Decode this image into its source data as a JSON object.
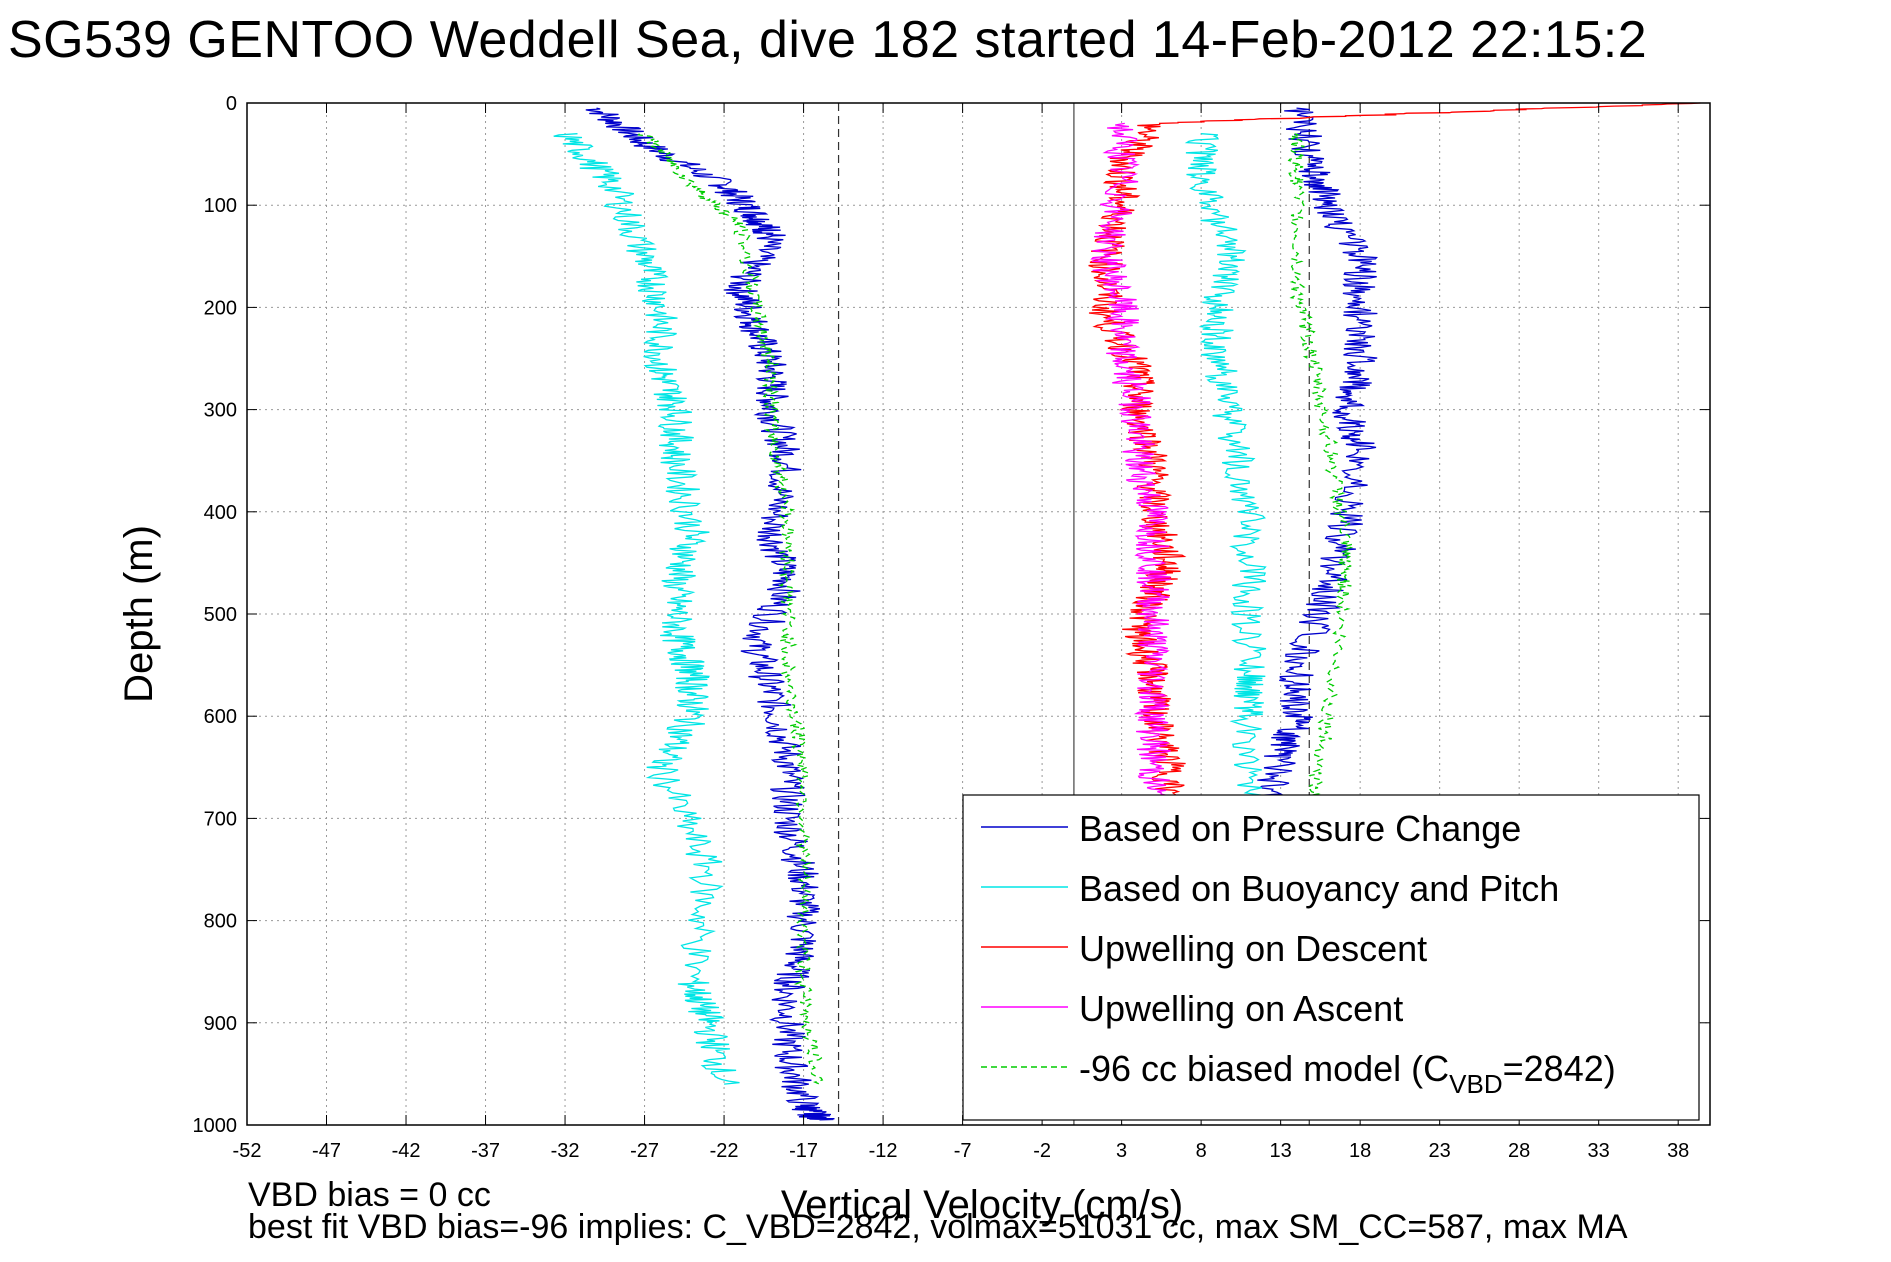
{
  "title": "SG539 GENTOO Weddell Sea, dive 182 started 14-Feb-2012 22:15:2",
  "notes": {
    "line1": "VBD bias = 0 cc",
    "line2": "best fit VBD bias=-96 implies: C_VBD=2842, volmax=51031 cc, max SM_CC=587, max MA"
  },
  "chart_data": {
    "type": "line",
    "xlabel": "Vertical Velocity (cm/s)",
    "ylabel": "Depth (m)",
    "xlim": [
      -52,
      40
    ],
    "ylim": [
      1000,
      0
    ],
    "y_reversed": true,
    "grid": true,
    "x_ticks": [
      -52,
      -47,
      -42,
      -37,
      -32,
      -27,
      -22,
      -17,
      -12,
      -7,
      -2,
      3,
      8,
      13,
      18,
      23,
      28,
      33,
      38
    ],
    "y_ticks": [
      0,
      100,
      200,
      300,
      400,
      500,
      600,
      700,
      800,
      900,
      1000
    ],
    "reference_lines": [
      {
        "x": -14.8,
        "style": "dashed"
      },
      {
        "x": 0,
        "style": "solid"
      },
      {
        "x": 14.8,
        "style": "dashed"
      }
    ],
    "legend": {
      "position": "bottom-right",
      "entries": [
        {
          "label": "Based on Pressure Change",
          "color": "#0000cc"
        },
        {
          "label": "Based on Buoyancy and Pitch",
          "color": "#00e5e5"
        },
        {
          "label": "Upwelling on Descent",
          "color": "#ff0000"
        },
        {
          "label": "Upwelling on Ascent",
          "color": "#ff00ff"
        },
        {
          "label": "-96 cc biased model (C",
          "sub": "VBD",
          "tail": "=2842)",
          "color": "#00cc00",
          "dashed": true
        }
      ]
    },
    "series": [
      {
        "name": "Based on Pressure Change (descent)",
        "color": "#0000cc",
        "x": [
          -30,
          -27,
          -22,
          -20,
          -19,
          -21,
          -20,
          -19,
          -19,
          -18,
          -19,
          -18,
          -20,
          -19,
          -18,
          -18,
          -17,
          -17,
          -18,
          -18,
          -17,
          -16
        ],
        "y": [
          5,
          40,
          80,
          110,
          130,
          180,
          220,
          260,
          300,
          350,
          420,
          470,
          530,
          580,
          640,
          700,
          760,
          820,
          870,
          930,
          980,
          995
        ]
      },
      {
        "name": "Based on Pressure Change (ascent)",
        "color": "#0000cc",
        "x": [
          14,
          14,
          13,
          13,
          12,
          13,
          14,
          14,
          16,
          17,
          18,
          17,
          18,
          18,
          18,
          16,
          15,
          14
        ],
        "y": [
          995,
          980,
          900,
          800,
          700,
          640,
          600,
          550,
          480,
          420,
          340,
          300,
          260,
          200,
          150,
          100,
          60,
          5
        ]
      },
      {
        "name": "Based on Buoyancy and Pitch (descent)",
        "color": "#00e5e5",
        "x": [
          -32,
          -29,
          -27,
          -26,
          -26,
          -25,
          -25,
          -24,
          -25,
          -25,
          -24,
          -24,
          -26,
          -23,
          -24,
          -23,
          -22
        ],
        "y": [
          30,
          80,
          150,
          200,
          260,
          300,
          350,
          420,
          470,
          520,
          560,
          600,
          650,
          750,
          860,
          900,
          960
        ]
      },
      {
        "name": "Based on Buoyancy and Pitch (ascent)",
        "color": "#00e5e5",
        "x": [
          12,
          12,
          11,
          11,
          11,
          11,
          11,
          10,
          9,
          9,
          10,
          8,
          8
        ],
        "y": [
          980,
          800,
          700,
          600,
          560,
          480,
          400,
          320,
          250,
          200,
          150,
          80,
          30
        ]
      },
      {
        "name": "Upwelling on Descent",
        "color": "#ff0000",
        "x": [
          39,
          5,
          3,
          3,
          2,
          2,
          4,
          4,
          5,
          5,
          6,
          5,
          4,
          5,
          5,
          6,
          6,
          6,
          6
        ],
        "y": [
          0,
          20,
          60,
          100,
          150,
          210,
          260,
          300,
          350,
          400,
          450,
          480,
          520,
          560,
          600,
          650,
          700,
          800,
          990
        ]
      },
      {
        "name": "Upwelling on Ascent",
        "color": "#ff00ff",
        "x": [
          3,
          3,
          2,
          3,
          3,
          4,
          4,
          5,
          5,
          5,
          5,
          5,
          5,
          5
        ],
        "y": [
          20,
          80,
          150,
          200,
          250,
          300,
          350,
          400,
          450,
          500,
          550,
          600,
          650,
          700
        ]
      },
      {
        "name": "-96 cc biased model (descent)",
        "color": "#00cc00",
        "dashed": true,
        "x": [
          -27,
          -24,
          -21,
          -20,
          -19,
          -19,
          -18,
          -18,
          -18,
          -17,
          -17,
          -17,
          -16
        ],
        "y": [
          30,
          80,
          120,
          200,
          260,
          320,
          400,
          480,
          560,
          650,
          760,
          880,
          960
        ]
      },
      {
        "name": "-96 cc biased model (ascent)",
        "color": "#00cc00",
        "dashed": true,
        "x": [
          14,
          14,
          14,
          15,
          16,
          17,
          17,
          16,
          15
        ],
        "y": [
          30,
          80,
          180,
          250,
          330,
          420,
          480,
          600,
          680
        ]
      }
    ]
  }
}
